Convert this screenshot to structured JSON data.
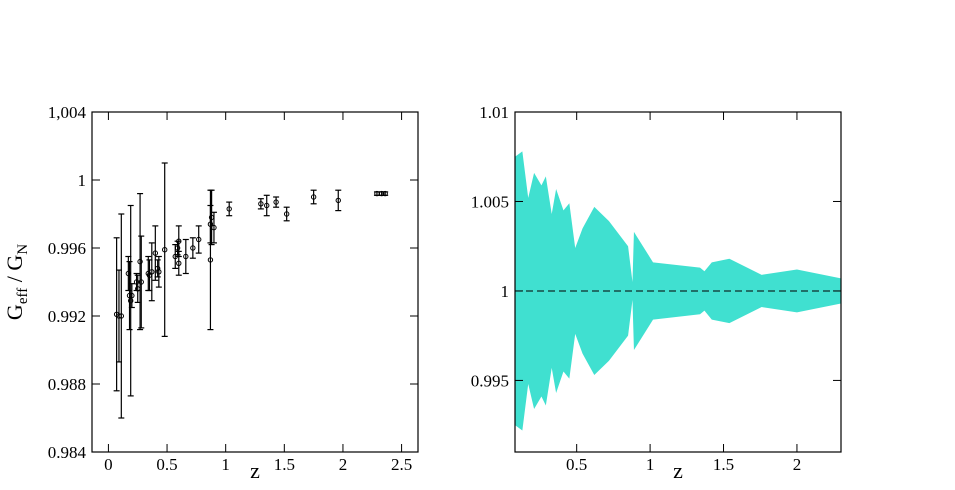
{
  "chart_data": [
    {
      "type": "scatter",
      "ylabel": [
        "G",
        "eff",
        " / G",
        "N"
      ],
      "xlabel": "z",
      "xlim": [
        -0.14,
        2.64
      ],
      "ylim": [
        0.984,
        1.004
      ],
      "xticks": [
        0,
        0.5,
        1,
        1.5,
        2,
        2.5
      ],
      "yticks": [
        0.984,
        0.988,
        0.992,
        0.996,
        1,
        {
          "value": 1.004,
          "label": "1,004"
        }
      ],
      "color": "#000000",
      "x": [
        0.07,
        0.09,
        0.11,
        0.17,
        0.18,
        0.19,
        0.2,
        0.24,
        0.25,
        0.27,
        0.28,
        0.34,
        0.35,
        0.37,
        0.4,
        0.42,
        0.43,
        0.48,
        0.57,
        0.59,
        0.6,
        0.6,
        0.66,
        0.72,
        0.77,
        0.87,
        0.87,
        0.88,
        0.9,
        1.03,
        1.3,
        1.35,
        1.43,
        1.52,
        1.75,
        1.96,
        2.29,
        2.33,
        2.36
      ],
      "values": [
        0.9921,
        0.992,
        0.992,
        0.9945,
        0.9932,
        0.9929,
        0.9932,
        0.994,
        0.9936,
        0.9952,
        0.994,
        0.9945,
        0.9944,
        0.9946,
        0.9957,
        0.9948,
        0.9946,
        0.9959,
        0.9955,
        0.996,
        0.9964,
        0.9951,
        0.9955,
        0.996,
        0.9965,
        0.9974,
        0.9953,
        0.9978,
        0.9972,
        0.9983,
        0.9986,
        0.9985,
        0.9987,
        0.998,
        0.999,
        0.9988,
        0.9992,
        0.9992,
        0.9992
      ],
      "errors": [
        0.0045,
        0.0027,
        0.006,
        0.001,
        0.002,
        0.0056,
        0.0007,
        0.0005,
        0.0008,
        0.004,
        0.0027,
        0.001,
        0.0009,
        0.0017,
        0.0016,
        0.0005,
        0.0009,
        0.0051,
        0.0007,
        0.0004,
        0.0009,
        0.0007,
        0.001,
        0.0006,
        0.0008,
        0.0011,
        0.0041,
        0.0016,
        0.0009,
        0.0004,
        0.0003,
        0.0006,
        0.0003,
        0.0004,
        0.0004,
        0.0006,
        0.0001,
        0.0001,
        0.0001
      ]
    },
    {
      "type": "area",
      "xlabel": "z",
      "xlim": [
        0.08,
        2.3
      ],
      "ylim": [
        0.991,
        1.01
      ],
      "xticks": [
        0.5,
        1,
        1.5,
        2
      ],
      "yticks": [
        0.995,
        1,
        1.005,
        1.01
      ],
      "color": "#40e0d0",
      "reference_line": 1,
      "x": [
        0.08,
        0.13,
        0.17,
        0.21,
        0.26,
        0.29,
        0.33,
        0.36,
        0.41,
        0.45,
        0.49,
        0.54,
        0.62,
        0.72,
        0.85,
        0.88,
        0.89,
        1.02,
        1.34,
        1.37,
        1.42,
        1.54,
        1.76,
        2.0,
        2.3
      ],
      "upper": [
        1.0075,
        1.0078,
        1.0052,
        1.0066,
        1.0059,
        1.0064,
        1.0043,
        1.0057,
        1.0045,
        1.0049,
        1.0024,
        1.0035,
        1.0047,
        1.0039,
        1.0025,
        1.0005,
        1.0033,
        1.0016,
        1.0013,
        1.0011,
        1.0016,
        1.0018,
        1.0009,
        1.0012,
        1.0007
      ],
      "lower": [
        0.9925,
        0.9922,
        0.9948,
        0.9934,
        0.9941,
        0.9936,
        0.9957,
        0.9943,
        0.9955,
        0.9951,
        0.9976,
        0.9965,
        0.9953,
        0.9961,
        0.9975,
        0.9995,
        0.9967,
        0.9984,
        0.9987,
        0.9989,
        0.9984,
        0.9982,
        0.9991,
        0.9988,
        0.9993
      ]
    }
  ]
}
